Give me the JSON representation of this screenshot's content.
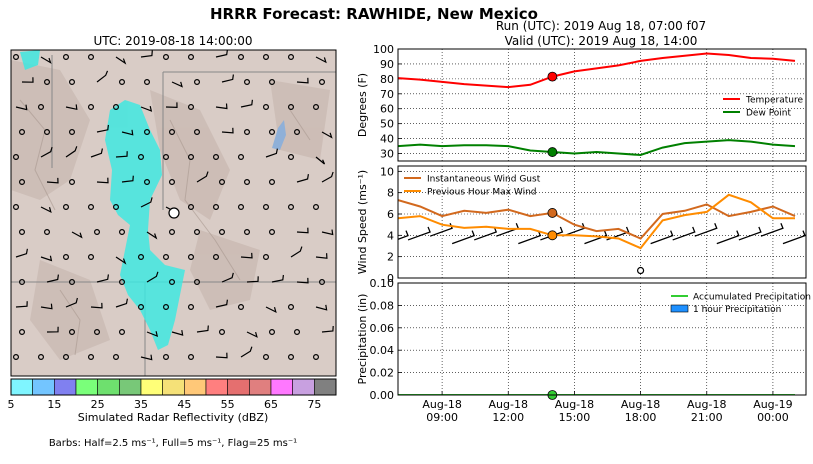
{
  "suptitle": "HRRR Forecast: RAWHIDE, New Mexico",
  "map": {
    "title": "UTC: 2019-08-18 14:00:00",
    "colorbar": {
      "colors": [
        "#7ff5ff",
        "#73c5ff",
        "#8080f0",
        "#7aff7a",
        "#6ee06e",
        "#78c878",
        "#ffff78",
        "#f5e178",
        "#ffc878",
        "#ff7f7f",
        "#e56f6f",
        "#e07f7f",
        "#ff78ff",
        "#c8a0e0",
        "#808080"
      ],
      "tick_labels": [
        "5",
        "15",
        "25",
        "35",
        "45",
        "55",
        "65",
        "75"
      ],
      "label": "Simulated Radar Reflectivity (dBZ)"
    },
    "barbs_note": "Barbs: Half=2.5 ms⁻¹, Full=5 ms⁻¹, Flag=25 ms⁻¹"
  },
  "right_title": {
    "line1": "Run (UTC): 2019 Aug 18, 07:00 f07",
    "line2": "Valid (UTC): 2019 Aug 18, 14:00"
  },
  "chart_data": [
    {
      "type": "line",
      "ylabel": "Degrees (F)",
      "ylim": [
        25,
        100
      ],
      "yticks": [
        30,
        40,
        50,
        60,
        70,
        80,
        90,
        100
      ],
      "grid": true,
      "legend_position": "right",
      "x_hours": [
        7,
        8,
        9,
        10,
        11,
        12,
        13,
        14,
        15,
        16,
        17,
        18,
        19,
        20,
        21,
        22,
        23,
        24,
        25
      ],
      "series": [
        {
          "name": "Temperature",
          "color": "#ff0000",
          "values": [
            80.5,
            79.5,
            78,
            76.5,
            75.5,
            74.5,
            76,
            81.5,
            85,
            87,
            89,
            92,
            94,
            95.5,
            97,
            96,
            94,
            93.5,
            92
          ]
        },
        {
          "name": "Dew Point",
          "color": "#008000",
          "values": [
            35,
            36,
            35,
            35.5,
            35.5,
            35,
            32,
            31,
            30,
            31,
            30,
            29,
            34,
            37,
            38,
            39,
            38,
            36,
            35
          ]
        }
      ],
      "markers": [
        {
          "x": 14,
          "y": 81.5,
          "color": "#ff0000"
        },
        {
          "x": 14,
          "y": 31,
          "color": "#008000"
        }
      ]
    },
    {
      "type": "line",
      "ylabel": "Wind Speed (ms⁻¹)",
      "ylim": [
        0,
        10.5
      ],
      "yticks": [
        0,
        2,
        4,
        6,
        8,
        10
      ],
      "grid": true,
      "legend_position": "top-left",
      "x_hours": [
        7,
        8,
        9,
        10,
        11,
        12,
        13,
        14,
        15,
        16,
        17,
        18,
        19,
        20,
        21,
        22,
        23,
        24,
        25
      ],
      "series": [
        {
          "name": "Instantaneous Wind Gust",
          "color": "#d2691e",
          "values": [
            7.3,
            6.7,
            5.8,
            6.3,
            6.1,
            6.4,
            5.8,
            6.1,
            5.0,
            4.4,
            4.6,
            3.7,
            6.0,
            6.3,
            6.9,
            5.8,
            6.2,
            6.7,
            5.8
          ]
        },
        {
          "name": "Previous Hour Max Wind",
          "color": "#ff8c00",
          "values": [
            5.6,
            5.8,
            5.0,
            4.7,
            4.8,
            4.6,
            4.6,
            4.0,
            4.0,
            3.9,
            3.7,
            2.8,
            5.4,
            5.9,
            6.2,
            7.8,
            7.1,
            5.6,
            5.6
          ]
        }
      ],
      "markers": [
        {
          "x": 14,
          "y": 6.1,
          "color": "#d2691e"
        },
        {
          "x": 14,
          "y": 4.0,
          "color": "#ff8c00"
        }
      ],
      "calm_marker_x": 18
    },
    {
      "type": "line",
      "ylabel": "Precipitation (in)",
      "ylim": [
        0,
        0.1
      ],
      "yticks": [
        "0.00",
        "0.02",
        "0.04",
        "0.06",
        "0.08",
        "0.10"
      ],
      "grid": true,
      "legend_position": "top-right",
      "x_hours": [
        7,
        8,
        9,
        10,
        11,
        12,
        13,
        14,
        15,
        16,
        17,
        18,
        19,
        20,
        21,
        22,
        23,
        24,
        25
      ],
      "series": [
        {
          "name": "Accumulated Precipitation",
          "color": "#32cd32",
          "values": [
            0,
            0,
            0,
            0,
            0,
            0,
            0,
            0,
            0,
            0,
            0,
            0,
            0,
            0,
            0,
            0,
            0,
            0,
            0
          ]
        },
        {
          "name": "1 hour Precipitation",
          "color": "#1e90ff",
          "values": [
            0,
            0,
            0,
            0,
            0,
            0,
            0,
            0,
            0,
            0,
            0,
            0,
            0,
            0,
            0,
            0,
            0,
            0,
            0
          ]
        }
      ],
      "markers": [
        {
          "x": 14,
          "y": 0,
          "color": "#32cd32"
        }
      ]
    }
  ],
  "x_axis": {
    "tick_hours": [
      9,
      12,
      15,
      18,
      21,
      24
    ],
    "tick_labels": [
      [
        "Aug-18",
        "09:00"
      ],
      [
        "Aug-18",
        "12:00"
      ],
      [
        "Aug-18",
        "15:00"
      ],
      [
        "Aug-18",
        "18:00"
      ],
      [
        "Aug-18",
        "21:00"
      ],
      [
        "Aug-19",
        "00:00"
      ]
    ]
  }
}
